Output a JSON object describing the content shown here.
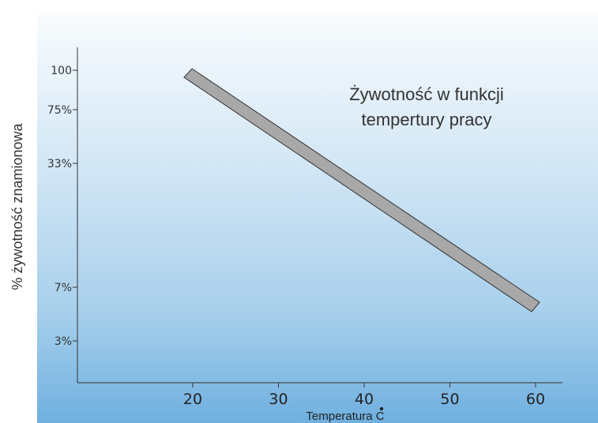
{
  "chart_data": {
    "type": "line",
    "title": "Żywotność w  funkcji\ntempertury pracy",
    "xlabel": "Temperatura  C",
    "ylabel": "% żywotność znamionowa",
    "x_ticks": [
      20,
      30,
      40,
      50,
      60
    ],
    "y_ticks": [
      "100",
      "75%",
      "33%",
      "7%",
      "3%"
    ],
    "xlim": [
      10,
      63
    ],
    "series": [
      {
        "x": [
          20,
          60
        ],
        "y": [
          100,
          6
        ]
      }
    ],
    "grid": false,
    "colors": {
      "band_fill": "#a8a8a8",
      "band_stroke": "#333333",
      "axis": "#333333"
    }
  }
}
